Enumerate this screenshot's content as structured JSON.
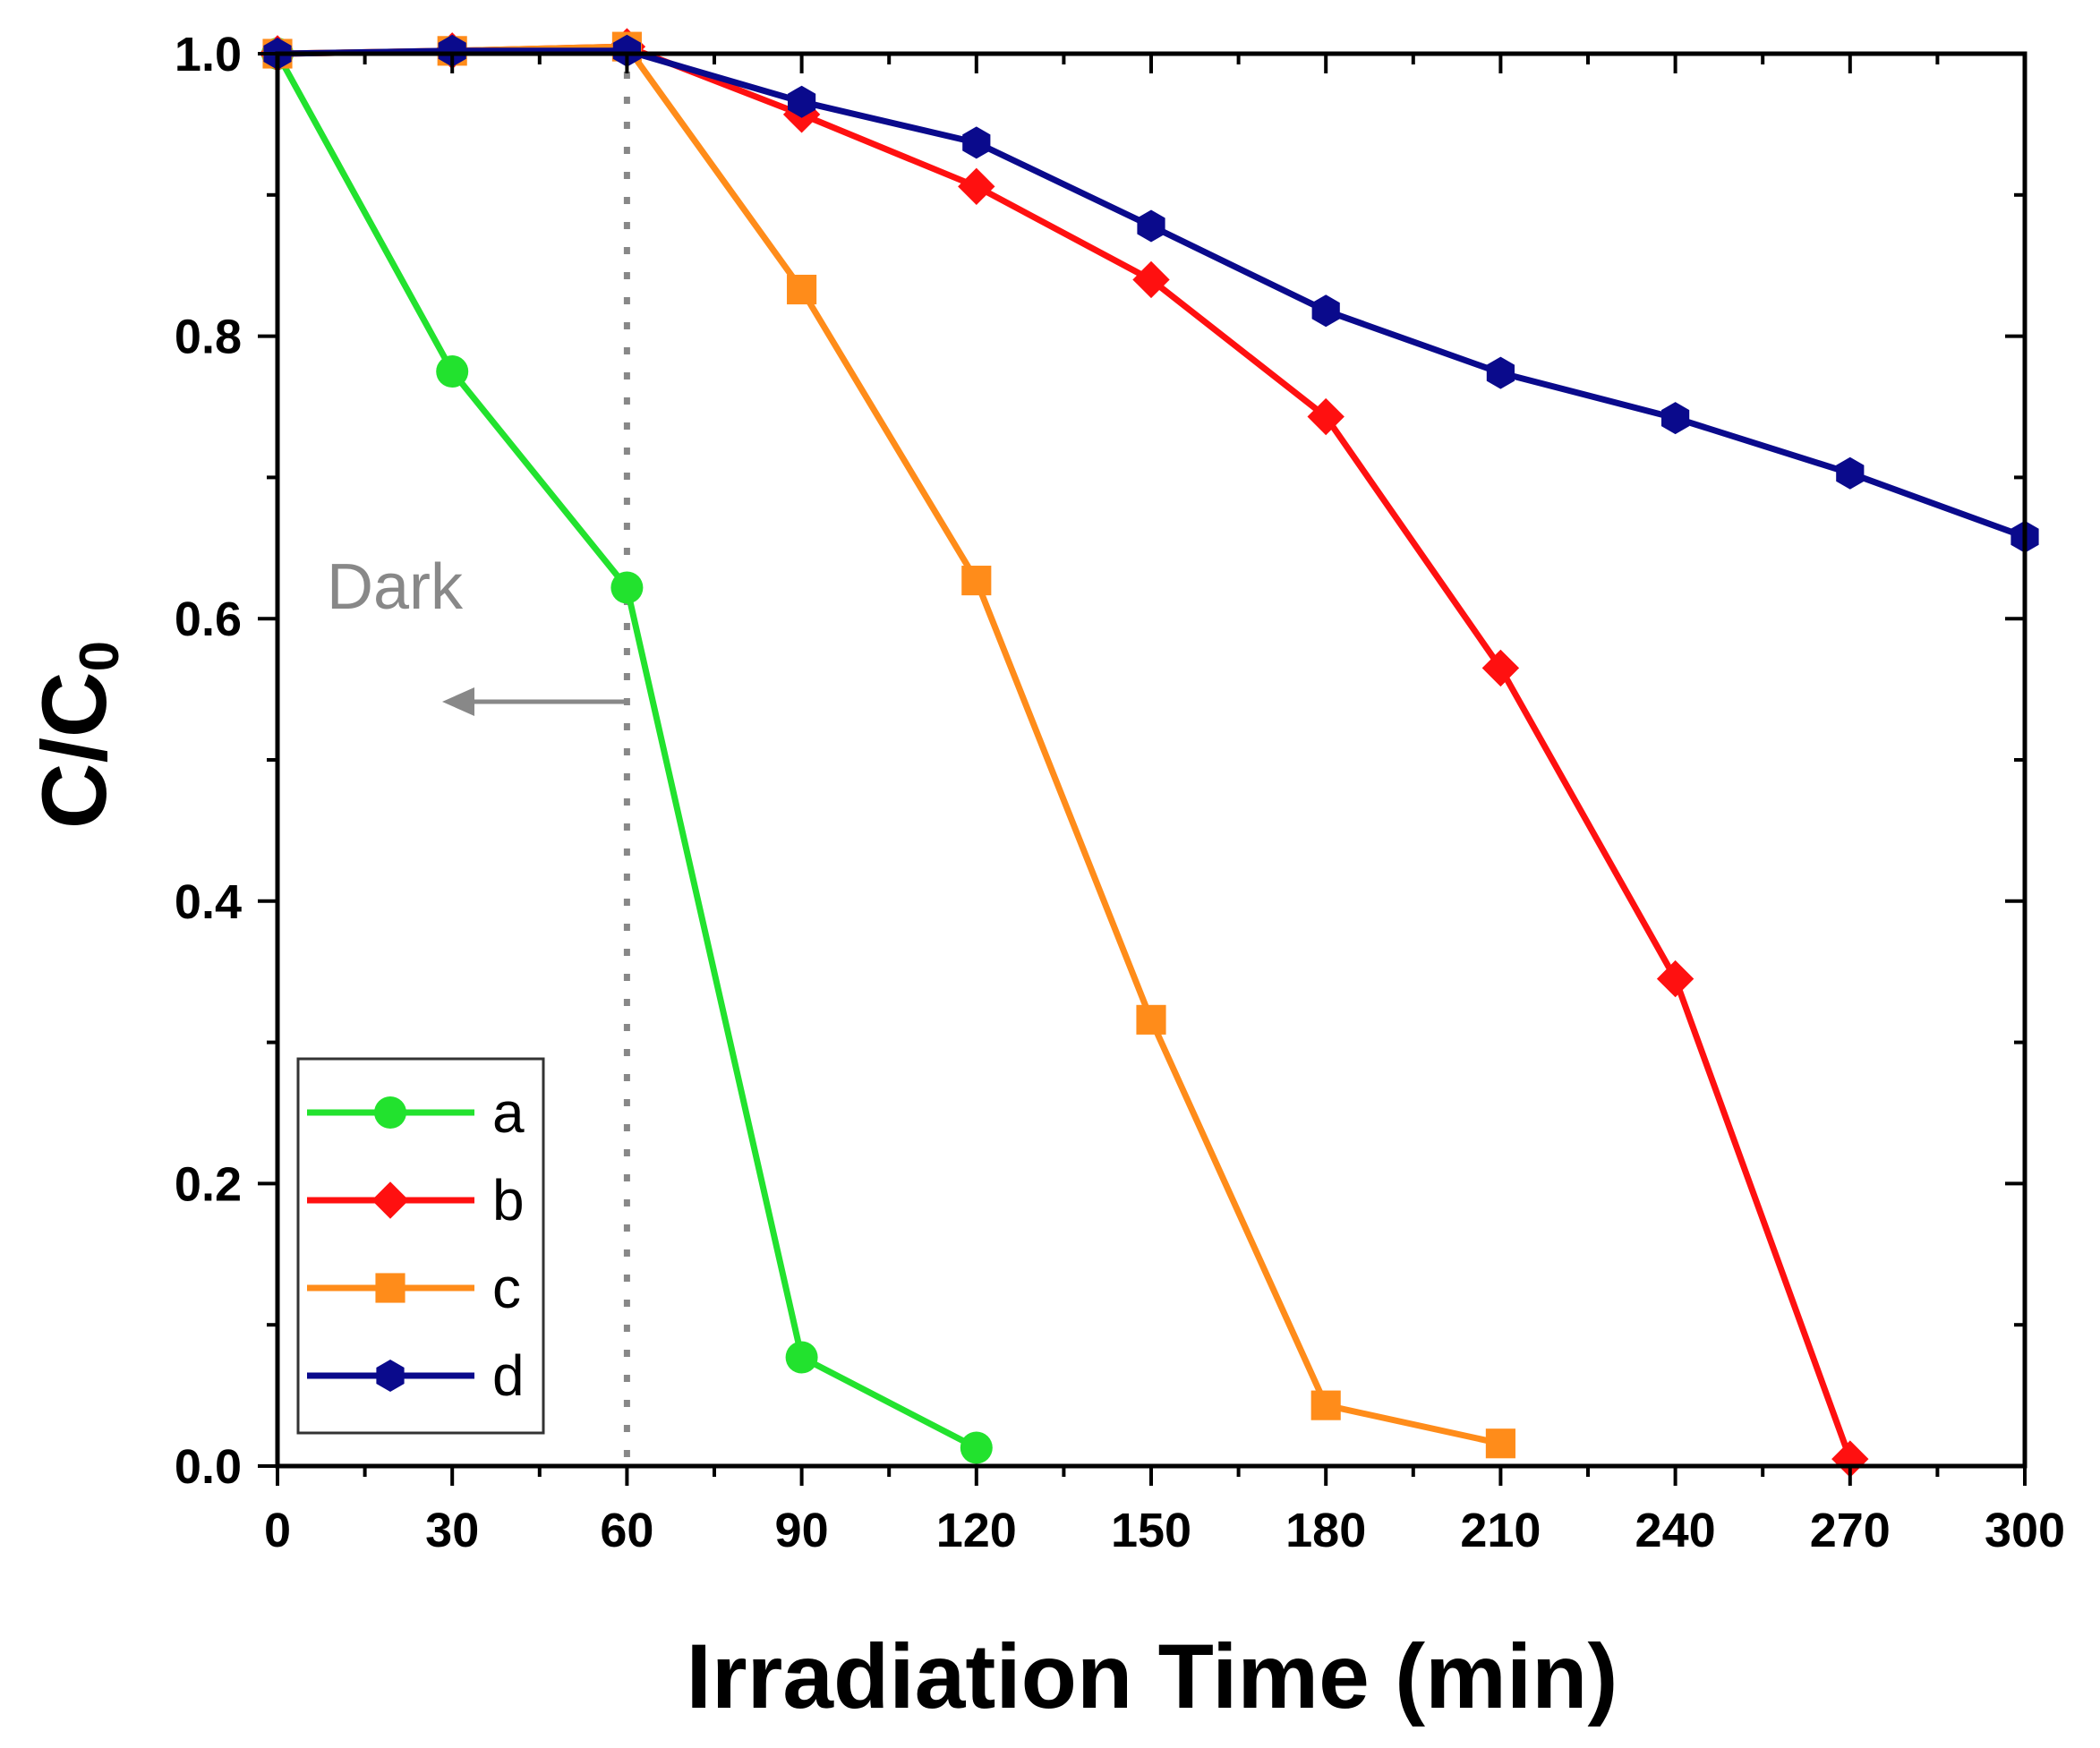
{
  "chart_data": {
    "type": "line",
    "title": "",
    "xlabel": "Irradiation Time (min)",
    "ylabel_main": "C/C",
    "ylabel_sub": "0",
    "xlim": [
      0,
      300
    ],
    "ylim": [
      0,
      1.0
    ],
    "xticks": [
      0,
      30,
      60,
      90,
      120,
      150,
      180,
      210,
      240,
      270,
      300
    ],
    "xtick_labels": [
      "0",
      "30",
      "60",
      "90",
      "120",
      "150",
      "180",
      "210",
      "240",
      "270",
      "300"
    ],
    "yticks": [
      0,
      0.2,
      0.4,
      0.6,
      0.8,
      1.0
    ],
    "ytick_labels": [
      "0.0",
      "0.2",
      "0.4",
      "0.6",
      "0.8",
      "1.0"
    ],
    "grid": false,
    "legend_position": "bottom-left",
    "annotation": {
      "text": "Dark",
      "divider_x": 60
    },
    "series": [
      {
        "name": "a",
        "color": "#22e22e",
        "marker": "circle",
        "x": [
          0,
          30,
          60,
          90,
          120
        ],
        "y": [
          1.0,
          0.775,
          0.622,
          0.077,
          0.013
        ]
      },
      {
        "name": "b",
        "color": "#ff1010",
        "marker": "diamond",
        "x": [
          0,
          30,
          60,
          90,
          120,
          150,
          180,
          210,
          240,
          270
        ],
        "y": [
          1.0,
          1.002,
          1.005,
          0.957,
          0.906,
          0.84,
          0.743,
          0.565,
          0.345,
          0.005
        ]
      },
      {
        "name": "c",
        "color": "#ff8c1a",
        "marker": "square",
        "x": [
          0,
          30,
          60,
          90,
          120,
          150,
          180,
          210
        ],
        "y": [
          1.0,
          1.002,
          1.005,
          0.833,
          0.627,
          0.316,
          0.043,
          0.016
        ]
      },
      {
        "name": "d",
        "color": "#0a0a8c",
        "marker": "hexagon",
        "x": [
          0,
          30,
          60,
          90,
          120,
          150,
          180,
          210,
          240,
          270,
          300
        ],
        "y": [
          1.0,
          1.002,
          1.002,
          0.966,
          0.937,
          0.878,
          0.818,
          0.774,
          0.742,
          0.703,
          0.658
        ]
      }
    ]
  }
}
